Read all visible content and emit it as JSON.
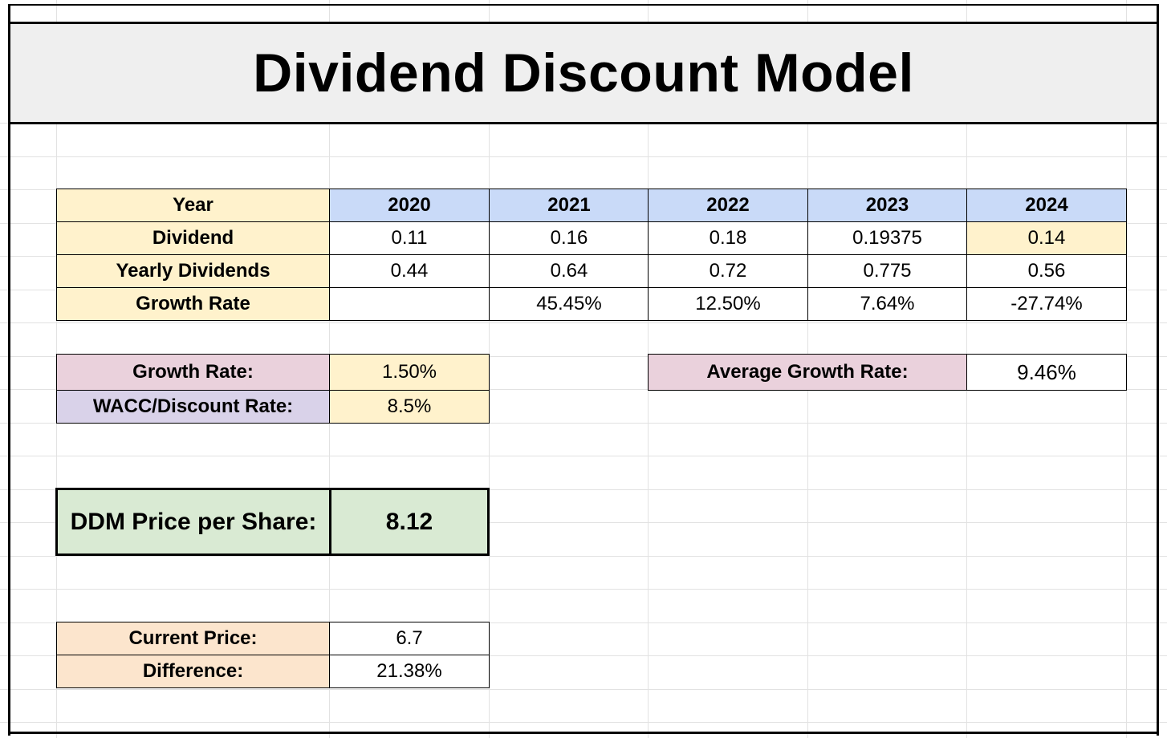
{
  "title": "Dividend Discount Model",
  "table": {
    "header_label": "Year",
    "years": [
      "2020",
      "2021",
      "2022",
      "2023",
      "2024"
    ],
    "rows": [
      {
        "label": "Dividend",
        "values": [
          "0.11",
          "0.16",
          "0.18",
          "0.19375",
          "0.14"
        ]
      },
      {
        "label": "Yearly Dividends",
        "values": [
          "0.44",
          "0.64",
          "0.72",
          "0.775",
          "0.56"
        ]
      },
      {
        "label": "Growth Rate",
        "values": [
          "",
          "45.45%",
          "12.50%",
          "7.64%",
          "-27.74%"
        ]
      }
    ]
  },
  "inputs": {
    "growth_rate_label": "Growth Rate:",
    "growth_rate_value": "1.50%",
    "wacc_label": "WACC/Discount Rate:",
    "wacc_value": "8.5%"
  },
  "average": {
    "label": "Average Growth Rate:",
    "value": "9.46%"
  },
  "ddm": {
    "label": "DDM Price per Share:",
    "value": "8.12"
  },
  "comparison": {
    "current_price_label": "Current Price:",
    "current_price_value": "6.7",
    "difference_label": "Difference:",
    "difference_value": "21.38%"
  },
  "colors": {
    "yellow": "#fff2cc",
    "blue": "#c9daf8",
    "pink": "#ead1dc",
    "lavender": "#d9d2e9",
    "green": "#d9ead3",
    "peach": "#fce5cd",
    "title_band": "#efefef"
  }
}
